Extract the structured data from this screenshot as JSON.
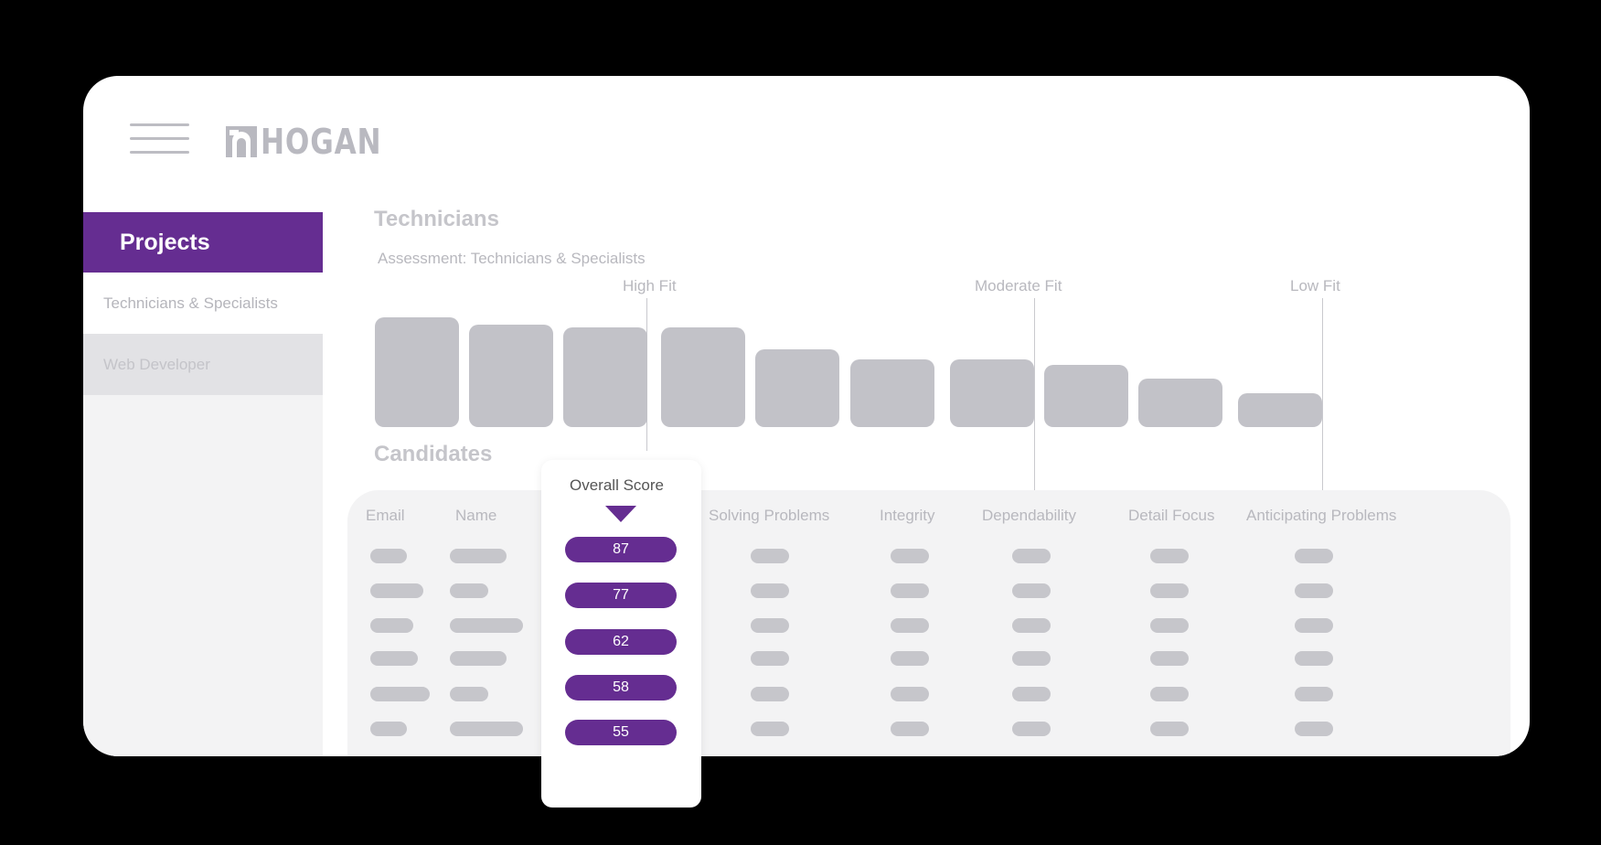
{
  "header": {
    "logo_text": "HOGAN"
  },
  "sidebar": {
    "title": "Projects",
    "items": [
      {
        "label": "Technicians & Specialists",
        "active": true
      },
      {
        "label": "Web Developer",
        "active": false
      }
    ]
  },
  "project": {
    "title": "Technicians",
    "subtitle": "Assessment: Technicians & Specialists"
  },
  "fit_labels": [
    "High Fit",
    "Moderate Fit",
    "Low Fit"
  ],
  "distribution": {
    "bar_heights_relative": [
      1.0,
      0.93,
      0.91,
      0.91,
      0.71,
      0.62,
      0.62,
      0.57,
      0.44,
      0.31
    ]
  },
  "candidates": {
    "title": "Candidates",
    "columns": [
      "Email",
      "Name",
      "Overall Score",
      "Solving Problems",
      "Integrity",
      "Dependability",
      "Detail Focus",
      "Anticipating Problems"
    ],
    "overall_scores": [
      "87",
      "77",
      "62",
      "58",
      "55"
    ]
  },
  "colors": {
    "brand": "#652d91",
    "placeholder": "#c6c6cb",
    "panel": "#f3f3f4"
  },
  "icons": {
    "menu": "hamburger-icon",
    "logo": "hogan-logo-icon",
    "sort": "sort-desc-icon"
  }
}
